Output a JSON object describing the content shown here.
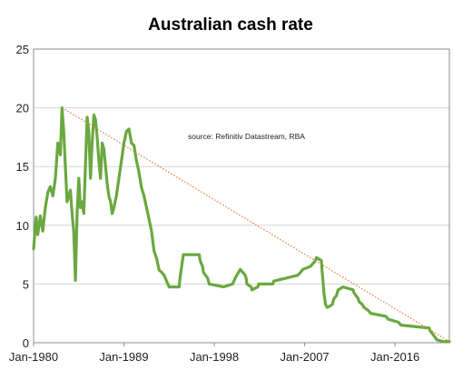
{
  "chart_data": {
    "type": "line",
    "title": "Australian cash rate",
    "annotation": "source:  Refinitiv Datastream, RBA",
    "xlabel": "",
    "ylabel": "",
    "x_range": [
      "1980-01",
      "2021-06"
    ],
    "ylim": [
      0,
      25
    ],
    "y_ticks": [
      0,
      5,
      10,
      15,
      20,
      25
    ],
    "x_ticks": [
      {
        "date": "1980-01",
        "label": "Jan-1980"
      },
      {
        "date": "1989-01",
        "label": "Jan-1989"
      },
      {
        "date": "1998-01",
        "label": "Jan-1998"
      },
      {
        "date": "2007-01",
        "label": "Jan-2007"
      },
      {
        "date": "2016-01",
        "label": "Jan-2016"
      }
    ],
    "grid": "horizontal",
    "legend": "none",
    "series": [
      {
        "color": "#6aa840",
        "points": [
          [
            "1980-01",
            8.0
          ],
          [
            "1980-04",
            10.7
          ],
          [
            "1980-06",
            9.2
          ],
          [
            "1980-09",
            10.8
          ],
          [
            "1980-12",
            9.5
          ],
          [
            "1981-03",
            11.5
          ],
          [
            "1981-06",
            12.8
          ],
          [
            "1981-09",
            13.3
          ],
          [
            "1981-12",
            12.5
          ],
          [
            "1982-03",
            14.0
          ],
          [
            "1982-06",
            17.0
          ],
          [
            "1982-09",
            16.0
          ],
          [
            "1982-11",
            20.0
          ],
          [
            "1983-01",
            18.0
          ],
          [
            "1983-03",
            15.0
          ],
          [
            "1983-05",
            12.0
          ],
          [
            "1983-07",
            12.5
          ],
          [
            "1983-09",
            13.0
          ],
          [
            "1983-11",
            11.0
          ],
          [
            "1984-01",
            9.5
          ],
          [
            "1984-03",
            5.3
          ],
          [
            "1984-05",
            11.0
          ],
          [
            "1984-07",
            14.0
          ],
          [
            "1984-09",
            11.5
          ],
          [
            "1984-11",
            12.0
          ],
          [
            "1985-01",
            11.0
          ],
          [
            "1985-03",
            15.0
          ],
          [
            "1985-05",
            19.2
          ],
          [
            "1985-07",
            18.0
          ],
          [
            "1985-09",
            14.0
          ],
          [
            "1985-11",
            17.0
          ],
          [
            "1986-01",
            19.4
          ],
          [
            "1986-03",
            19.0
          ],
          [
            "1986-05",
            17.5
          ],
          [
            "1986-07",
            15.5
          ],
          [
            "1986-09",
            14.0
          ],
          [
            "1986-11",
            17.0
          ],
          [
            "1987-01",
            16.5
          ],
          [
            "1987-03",
            15.0
          ],
          [
            "1987-05",
            13.5
          ],
          [
            "1987-07",
            12.5
          ],
          [
            "1987-09",
            12.0
          ],
          [
            "1987-11",
            11.0
          ],
          [
            "1988-01",
            11.5
          ],
          [
            "1988-04",
            12.5
          ],
          [
            "1988-07",
            14.0
          ],
          [
            "1988-10",
            15.5
          ],
          [
            "1989-01",
            17.0
          ],
          [
            "1989-04",
            18.0
          ],
          [
            "1989-07",
            18.2
          ],
          [
            "1989-10",
            17.0
          ],
          [
            "1990-01",
            16.8
          ],
          [
            "1990-04",
            15.5
          ],
          [
            "1990-07",
            14.5
          ],
          [
            "1990-10",
            13.2
          ],
          [
            "1991-01",
            12.5
          ],
          [
            "1991-04",
            11.5
          ],
          [
            "1991-07",
            10.5
          ],
          [
            "1991-10",
            9.5
          ],
          [
            "1992-01",
            7.8
          ],
          [
            "1992-04",
            7.2
          ],
          [
            "1992-07",
            6.2
          ],
          [
            "1992-10",
            6.0
          ],
          [
            "1993-01",
            5.75
          ],
          [
            "1993-04",
            5.25
          ],
          [
            "1993-07",
            4.75
          ],
          [
            "1994-07",
            4.75
          ],
          [
            "1994-08",
            5.5
          ],
          [
            "1994-10",
            6.5
          ],
          [
            "1994-12",
            7.5
          ],
          [
            "1996-07",
            7.5
          ],
          [
            "1996-08",
            7.0
          ],
          [
            "1996-11",
            6.5
          ],
          [
            "1996-12",
            6.0
          ],
          [
            "1997-05",
            5.5
          ],
          [
            "1997-07",
            5.0
          ],
          [
            "1998-12",
            4.75
          ],
          [
            "1999-11",
            5.0
          ],
          [
            "2000-02",
            5.5
          ],
          [
            "2000-04",
            5.75
          ],
          [
            "2000-08",
            6.25
          ],
          [
            "2001-02",
            5.75
          ],
          [
            "2001-03",
            5.5
          ],
          [
            "2001-04",
            5.0
          ],
          [
            "2001-09",
            4.75
          ],
          [
            "2001-10",
            4.5
          ],
          [
            "2002-05",
            4.75
          ],
          [
            "2002-06",
            5.0
          ],
          [
            "2003-11",
            5.0
          ],
          [
            "2003-12",
            5.25
          ],
          [
            "2005-03",
            5.5
          ],
          [
            "2006-05",
            5.75
          ],
          [
            "2006-08",
            6.0
          ],
          [
            "2006-11",
            6.25
          ],
          [
            "2007-08",
            6.5
          ],
          [
            "2007-11",
            6.75
          ],
          [
            "2008-02",
            7.0
          ],
          [
            "2008-03",
            7.25
          ],
          [
            "2008-09",
            7.0
          ],
          [
            "2008-10",
            6.0
          ],
          [
            "2008-11",
            5.25
          ],
          [
            "2008-12",
            4.25
          ],
          [
            "2009-02",
            3.25
          ],
          [
            "2009-04",
            3.0
          ],
          [
            "2009-10",
            3.25
          ],
          [
            "2009-11",
            3.5
          ],
          [
            "2009-12",
            3.75
          ],
          [
            "2010-03",
            4.0
          ],
          [
            "2010-04",
            4.25
          ],
          [
            "2010-05",
            4.5
          ],
          [
            "2010-11",
            4.75
          ],
          [
            "2011-11",
            4.5
          ],
          [
            "2011-12",
            4.25
          ],
          [
            "2012-05",
            3.75
          ],
          [
            "2012-06",
            3.5
          ],
          [
            "2012-10",
            3.25
          ],
          [
            "2012-12",
            3.0
          ],
          [
            "2013-05",
            2.75
          ],
          [
            "2013-08",
            2.5
          ],
          [
            "2015-02",
            2.25
          ],
          [
            "2015-05",
            2.0
          ],
          [
            "2016-05",
            1.75
          ],
          [
            "2016-08",
            1.5
          ],
          [
            "2019-06",
            1.25
          ],
          [
            "2019-07",
            1.0
          ],
          [
            "2019-10",
            0.75
          ],
          [
            "2020-03",
            0.25
          ],
          [
            "2020-11",
            0.1
          ],
          [
            "2021-06",
            0.1
          ]
        ]
      }
    ],
    "trendline": {
      "style": "dotted",
      "color": "#e8793a",
      "points": [
        [
          "1982-11",
          20.0
        ],
        [
          "2021-06",
          0.1
        ]
      ]
    }
  }
}
